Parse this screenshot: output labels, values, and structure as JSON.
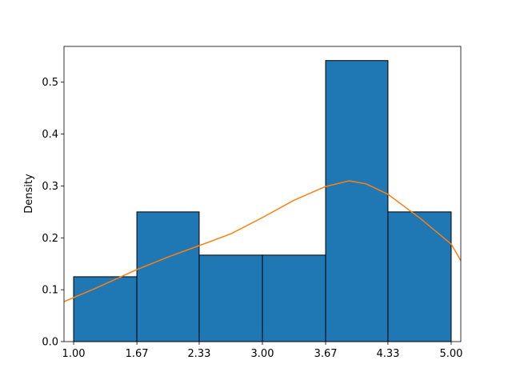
{
  "chart_data": {
    "type": "bar",
    "title": "",
    "xlabel": "",
    "ylabel": "Density",
    "bin_edges": [
      1.0,
      1.67,
      2.33,
      3.0,
      3.67,
      4.33,
      5.0
    ],
    "values": [
      0.125,
      0.25,
      0.1667,
      0.1667,
      0.5417,
      0.25
    ],
    "xlim": [
      0.898,
      5.102
    ],
    "ylim": [
      0,
      0.569
    ],
    "xticks": [
      "1.00",
      "1.67",
      "2.33",
      "3.00",
      "3.67",
      "4.33",
      "5.00"
    ],
    "yticks": [
      "0.0",
      "0.1",
      "0.2",
      "0.3",
      "0.4",
      "0.5"
    ],
    "grid": false,
    "bar_color": "#1f77b4",
    "bar_edge_color": "#000000",
    "kde": {
      "color": "#ff7f0e",
      "x": [
        0.898,
        1.2,
        1.67,
        2.0,
        2.33,
        2.67,
        3.0,
        3.33,
        3.67,
        3.92,
        4.1,
        4.33,
        4.67,
        5.0,
        5.102
      ],
      "y": [
        0.077,
        0.1,
        0.139,
        0.163,
        0.185,
        0.208,
        0.239,
        0.272,
        0.299,
        0.31,
        0.304,
        0.284,
        0.238,
        0.188,
        0.156
      ]
    }
  }
}
